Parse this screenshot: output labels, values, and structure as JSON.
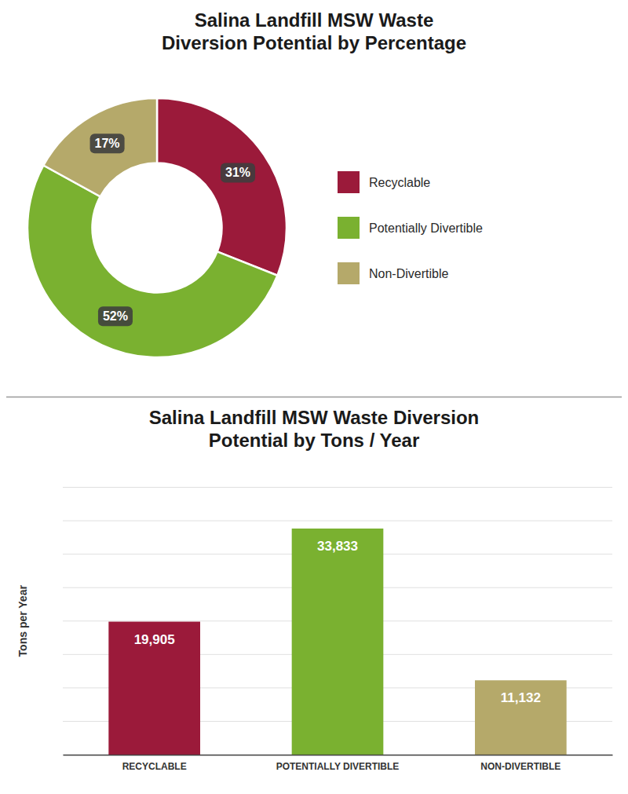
{
  "chart_data": [
    {
      "type": "pie",
      "title": "Salina Landfill MSW Waste\nDiversion Potential by Percentage",
      "categories": [
        "Recyclable",
        "Potentially Divertible",
        "Non-Divertible"
      ],
      "values": [
        31,
        52,
        17
      ],
      "value_labels": [
        "31%",
        "52%",
        "17%"
      ],
      "colors": [
        "#9b1a3a",
        "#7ab130",
        "#b5a96a"
      ],
      "data_labels": true,
      "legend": "right"
    },
    {
      "type": "bar",
      "title": "Salina Landfill MSW Waste Diversion\nPotential by Tons / Year",
      "categories": [
        "RECYCLABLE",
        "POTENTIALLY DIVERTIBLE",
        "NON-DIVERTIBLE"
      ],
      "values": [
        19905,
        33833,
        11132
      ],
      "value_labels": [
        "19,905",
        "33,833",
        "11,132"
      ],
      "colors": [
        "#9b1a3a",
        "#7ab130",
        "#b5a96a"
      ],
      "y_label": "Tons per Year",
      "ylim": [
        0,
        40000
      ],
      "yticks": [
        0,
        5000,
        10000,
        15000,
        20000,
        25000,
        30000,
        35000,
        40000
      ],
      "grid": true,
      "tick_labels": "x",
      "data_labels": true
    }
  ]
}
